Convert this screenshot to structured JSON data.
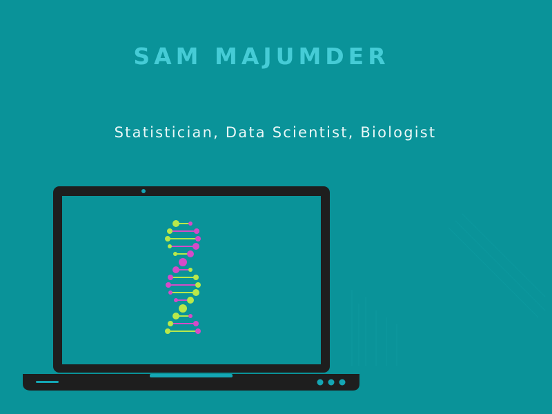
{
  "header": {
    "name": "SAM MAJUMDER",
    "tagline": "Statistician, Data Scientist, Biologist"
  },
  "colors": {
    "background": "#0a9399",
    "name_text": "#45ccd6",
    "tagline_text": "#e9f7f7",
    "laptop_body": "#1e1e1e",
    "accent": "#14a6b4",
    "dna_green": "#b9e84a",
    "dna_magenta": "#d64ac8"
  },
  "icons": {
    "laptop": "laptop-icon",
    "dna": "dna-helix-icon"
  }
}
